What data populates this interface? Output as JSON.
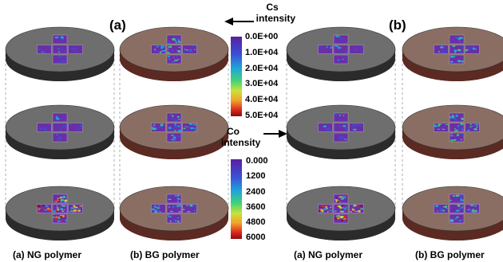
{
  "panel_labels": [
    "(a)",
    "(b)"
  ],
  "column_captions": [
    "(a) NG polymer",
    "(b) BG polymer",
    "(a) NG polymer",
    "(b) BG polymer"
  ],
  "colorbars": [
    {
      "title_line1": "Cs",
      "title_line2": "intensity",
      "ticks": [
        "0.0E+00",
        "1.0E+04",
        "2.0E+04",
        "3.0E+04",
        "4.0E+04",
        "5.0E+04"
      ],
      "arrow": "left-arrow"
    },
    {
      "title_line1": "Co",
      "title_line2": "intensity",
      "ticks": [
        "0.000",
        "1200",
        "2400",
        "3600",
        "4800",
        "6000"
      ],
      "arrow": "right-arrow"
    }
  ],
  "colors": {
    "ng_disk_top": "#6e6e6e",
    "ng_disk_side": "#2b2b2b",
    "bg_disk_top": "#8a6e64",
    "bg_disk_side": "#5b2a22",
    "map_base": "#6a2fa8",
    "colormap": [
      "#5a1f9e",
      "#3b4fd6",
      "#1fa6d8",
      "#3fd27a",
      "#c9e23a",
      "#f2a32a",
      "#d9281f",
      "#8b0d0d"
    ]
  }
}
